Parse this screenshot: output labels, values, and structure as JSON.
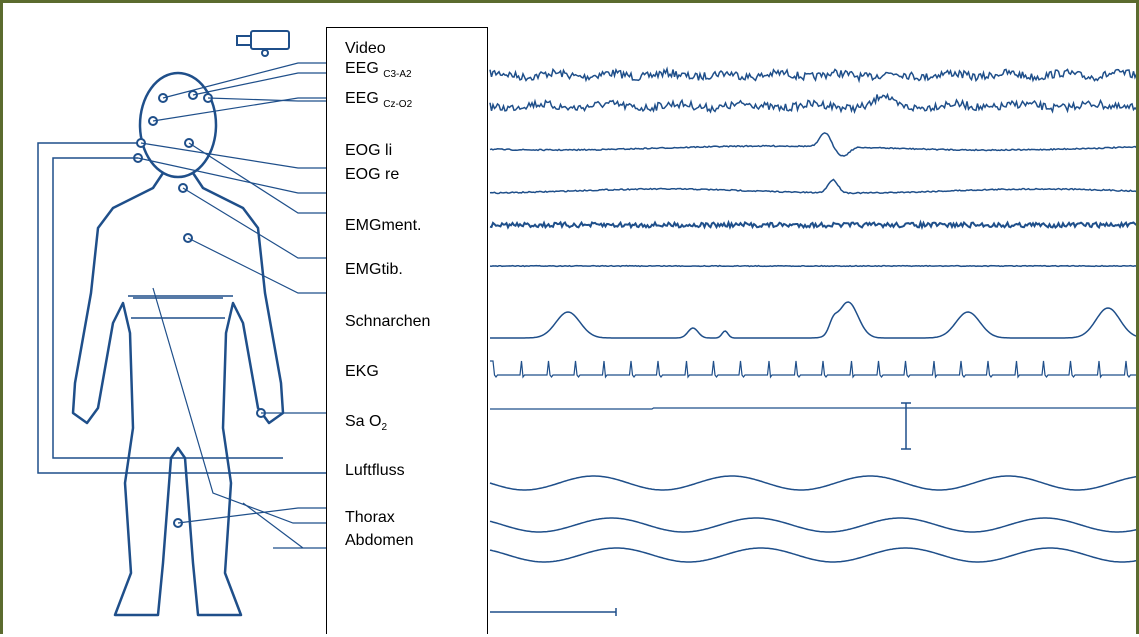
{
  "labels": [
    {
      "text": "Video"
    },
    {
      "text": "EEG",
      "sub": "C3-A2"
    },
    {
      "text": "EEG",
      "sub": "Cz-O2"
    },
    {
      "text": "EOG li"
    },
    {
      "text": "EOG re"
    },
    {
      "text": "EMGment."
    },
    {
      "text": "EMGtib."
    },
    {
      "text": "Schnarchen"
    },
    {
      "text": "EKG"
    },
    {
      "text": "Sa O",
      "sub": "2"
    },
    {
      "text": "Luftfluss"
    },
    {
      "text": "Thorax"
    },
    {
      "text": "Abdomen"
    }
  ]
}
